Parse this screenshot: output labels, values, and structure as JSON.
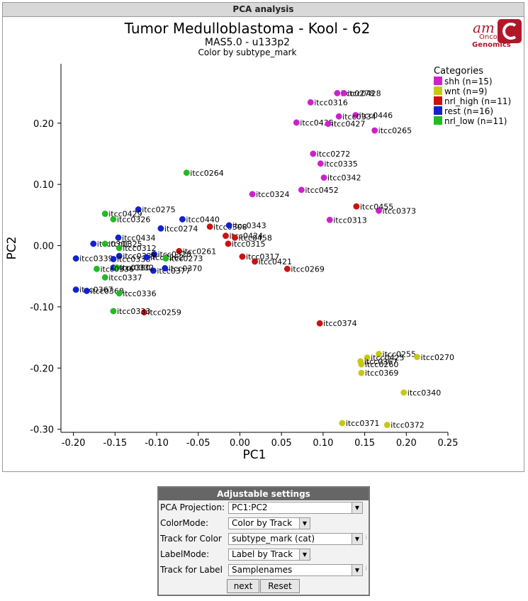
{
  "panel": {
    "title": "PCA analysis"
  },
  "logo": {
    "line1": "am",
    "line2": "Onco",
    "line3": "Genomics"
  },
  "chart_data": {
    "type": "scatter",
    "title": "Tumor Medulloblastoma  - Kool - 62",
    "subtitle": "MAS5.0 - u133p2",
    "subtitle2": "Color by subtype_mark",
    "xlabel": "PC1",
    "ylabel": "PC2",
    "xlim": [
      -0.215,
      0.25
    ],
    "ylim": [
      -0.305,
      0.297
    ],
    "xticks": [
      "-0.20",
      "-0.15",
      "-0.10",
      "-0.05",
      "0.00",
      "0.05",
      "0.10",
      "0.15",
      "0.20",
      "0.25"
    ],
    "yticks": [
      "-0.30",
      "-0.20",
      "-0.10",
      "0.00",
      "0.10",
      "0.20"
    ],
    "grid": false,
    "legend": {
      "title": "Categories",
      "position": "top-right"
    },
    "series": [
      {
        "name": "shh (n=15)",
        "color": "#cc22cc",
        "points": [
          {
            "x": 0.117,
            "y": 0.249,
            "label": "itcc0278"
          },
          {
            "x": 0.125,
            "y": 0.249,
            "label": "itcc0428"
          },
          {
            "x": 0.085,
            "y": 0.234,
            "label": "itcc0316"
          },
          {
            "x": 0.139,
            "y": 0.213,
            "label": "itcc0446"
          },
          {
            "x": 0.119,
            "y": 0.211,
            "label": "itcc0334"
          },
          {
            "x": 0.068,
            "y": 0.201,
            "label": "itcc0435"
          },
          {
            "x": 0.106,
            "y": 0.199,
            "label": "itcc0427"
          },
          {
            "x": 0.162,
            "y": 0.188,
            "label": "itcc0265"
          },
          {
            "x": 0.088,
            "y": 0.15,
            "label": "itcc0272"
          },
          {
            "x": 0.097,
            "y": 0.134,
            "label": "itcc0335"
          },
          {
            "x": 0.101,
            "y": 0.111,
            "label": "itcc0342"
          },
          {
            "x": 0.015,
            "y": 0.084,
            "label": "itcc0324"
          },
          {
            "x": 0.074,
            "y": 0.091,
            "label": "itcc0452"
          },
          {
            "x": 0.167,
            "y": 0.057,
            "label": "itcc0373"
          },
          {
            "x": 0.108,
            "y": 0.042,
            "label": "itcc0313"
          }
        ]
      },
      {
        "name": "wnt (n=9)",
        "color": "#c8c814",
        "points": [
          {
            "x": 0.167,
            "y": -0.177,
            "label": "itcc0255"
          },
          {
            "x": 0.213,
            "y": -0.182,
            "label": "itcc0270"
          },
          {
            "x": 0.153,
            "y": -0.183,
            "label": "itcc0425"
          },
          {
            "x": 0.145,
            "y": -0.189,
            "label": "itcc0367"
          },
          {
            "x": 0.146,
            "y": -0.194,
            "label": "itcc0260"
          },
          {
            "x": 0.146,
            "y": -0.208,
            "label": "itcc0369"
          },
          {
            "x": 0.197,
            "y": -0.24,
            "label": "itcc0340"
          },
          {
            "x": 0.123,
            "y": -0.29,
            "label": "itcc0371"
          },
          {
            "x": 0.177,
            "y": -0.293,
            "label": "itcc0372"
          }
        ]
      },
      {
        "name": "nrl_high (n=11)",
        "color": "#cc1111",
        "points": [
          {
            "x": 0.14,
            "y": 0.064,
            "label": "itcc0455"
          },
          {
            "x": -0.036,
            "y": 0.031,
            "label": "itcc0308"
          },
          {
            "x": -0.017,
            "y": 0.016,
            "label": "itcc0424"
          },
          {
            "x": -0.006,
            "y": 0.013,
            "label": "itcc0458"
          },
          {
            "x": -0.014,
            "y": 0.003,
            "label": "itcc0315"
          },
          {
            "x": -0.073,
            "y": -0.009,
            "label": "itcc0261"
          },
          {
            "x": 0.003,
            "y": -0.018,
            "label": "itcc0317"
          },
          {
            "x": 0.018,
            "y": -0.026,
            "label": "itcc0421"
          },
          {
            "x": 0.057,
            "y": -0.038,
            "label": "itcc0269"
          },
          {
            "x": 0.096,
            "y": -0.127,
            "label": "itcc0374"
          },
          {
            "x": -0.115,
            "y": -0.109,
            "label": "itcc0259"
          }
        ]
      },
      {
        "name": "rest (n=16)",
        "color": "#1122cc",
        "points": [
          {
            "x": -0.122,
            "y": 0.059,
            "label": "itcc0275"
          },
          {
            "x": -0.069,
            "y": 0.043,
            "label": "itcc0440"
          },
          {
            "x": -0.095,
            "y": 0.028,
            "label": "itcc0274"
          },
          {
            "x": -0.013,
            "y": 0.033,
            "label": "itcc0343"
          },
          {
            "x": -0.146,
            "y": 0.013,
            "label": "itcc0434"
          },
          {
            "x": -0.176,
            "y": 0.003,
            "label": "itcc0301"
          },
          {
            "x": -0.103,
            "y": -0.014,
            "label": "itcc0328"
          },
          {
            "x": -0.145,
            "y": -0.017,
            "label": "itcc0339"
          },
          {
            "x": -0.197,
            "y": -0.021,
            "label": "itcc0339"
          },
          {
            "x": -0.152,
            "y": -0.022,
            "label": "itcc0338"
          },
          {
            "x": -0.152,
            "y": -0.036,
            "label": "itcc0380"
          },
          {
            "x": -0.104,
            "y": -0.041,
            "label": "itcc0377"
          },
          {
            "x": -0.09,
            "y": -0.037,
            "label": "itcc0370"
          },
          {
            "x": -0.197,
            "y": -0.072,
            "label": "itcc0367"
          },
          {
            "x": -0.184,
            "y": -0.074,
            "label": "itcc0368"
          },
          {
            "x": -0.112,
            "y": -0.019,
            "label": "itcc0262"
          }
        ]
      },
      {
        "name": "nrl_low (n=11)",
        "color": "#22bb22",
        "points": [
          {
            "x": -0.064,
            "y": 0.119,
            "label": "itcc0264"
          },
          {
            "x": -0.162,
            "y": 0.052,
            "label": "itcc0429"
          },
          {
            "x": -0.152,
            "y": 0.043,
            "label": "itcc0326"
          },
          {
            "x": -0.162,
            "y": 0.003,
            "label": "itcc0325"
          },
          {
            "x": -0.145,
            "y": -0.004,
            "label": "itcc0312"
          },
          {
            "x": -0.089,
            "y": -0.021,
            "label": "itcc0273"
          },
          {
            "x": -0.148,
            "y": -0.036,
            "label": "itcc0332"
          },
          {
            "x": -0.172,
            "y": -0.038,
            "label": "itcc0336"
          },
          {
            "x": -0.162,
            "y": -0.052,
            "label": "itcc0337"
          },
          {
            "x": -0.145,
            "y": -0.078,
            "label": "itcc0336"
          },
          {
            "x": -0.152,
            "y": -0.107,
            "label": "itcc0333"
          }
        ]
      }
    ]
  },
  "settings": {
    "title": "Adjustable settings",
    "rows": [
      {
        "label": "PCA Projection:",
        "value": "PC1:PC2"
      },
      {
        "label": "ColorMode:",
        "value": "Color by Track"
      },
      {
        "label": "Track for Color",
        "value": "subtype_mark (cat)",
        "info": "i"
      },
      {
        "label": "LabelMode:",
        "value": "Label by Track"
      },
      {
        "label": "Track for Label",
        "value": "Samplenames",
        "info": "i"
      }
    ],
    "next_label": "next",
    "reset_label": "Reset"
  }
}
